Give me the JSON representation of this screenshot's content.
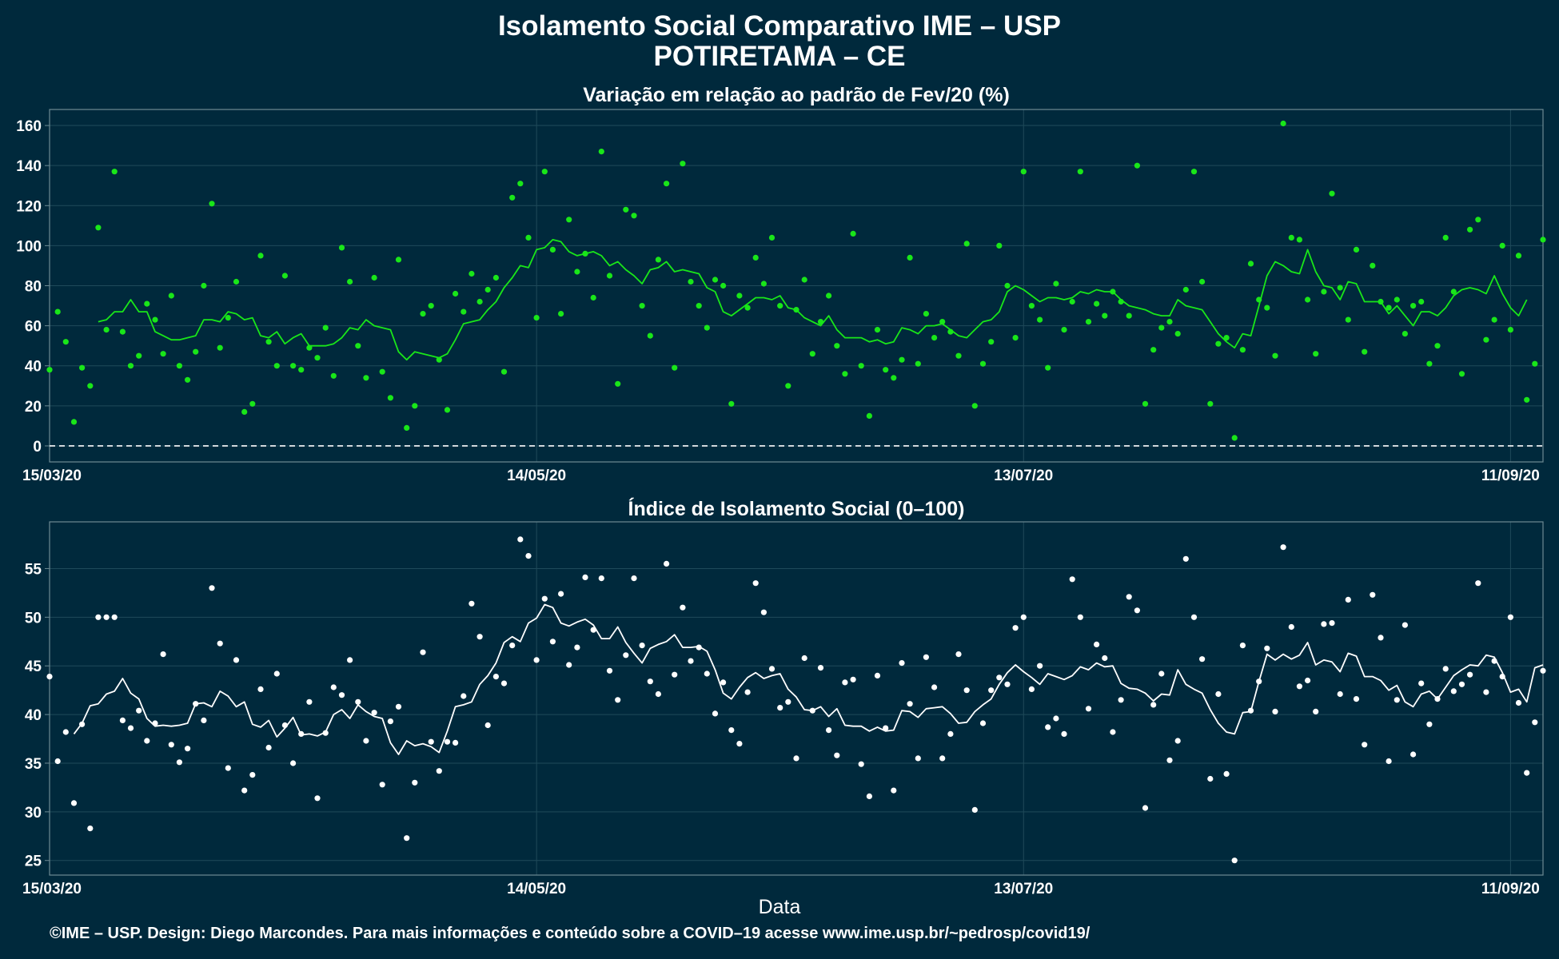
{
  "header": {
    "title": "Isolamento Social Comparativo IME – USP",
    "subtitle": "POTIRETAMA – CE"
  },
  "footer": {
    "credit": "©IME – USP. Design: Diego Marcondes. Para mais informações e conteúdo sobre a COVID–19 acesse www.ime.usp.br/~pedrosp/covid19/"
  },
  "colors": {
    "background": "#00293c",
    "top_series": "#19e619",
    "bottom_series": "#ffffff",
    "grid": "#1f4a5a",
    "panel_border": "#6d8a93"
  },
  "chart_data": [
    {
      "type": "scatter",
      "title": "Variação em relação ao padrão de Fev/20 (%)",
      "xlabel": "",
      "ylabel": "",
      "x_start": "15/03/20",
      "x_ticks": [
        "15/03/20",
        "14/05/20",
        "13/07/20",
        "11/09/20"
      ],
      "x_tick_days": [
        0,
        60,
        120,
        180
      ],
      "y_ticks": [
        0,
        20,
        40,
        60,
        80,
        100,
        120,
        140,
        160
      ],
      "ylim": [
        -8,
        168
      ],
      "xlim_days": [
        0,
        184
      ],
      "grid": true,
      "reference_line": 0,
      "series": [
        {
          "style": "points",
          "values": [
            38,
            67,
            52,
            12,
            39,
            30,
            109,
            58,
            137,
            57,
            40,
            45,
            71,
            63,
            46,
            75,
            40,
            33,
            47,
            80,
            121,
            49,
            64,
            82,
            17,
            21,
            95,
            52,
            40,
            85,
            40,
            38,
            49,
            44,
            59,
            35,
            99,
            82,
            50,
            34,
            84,
            37,
            24,
            93,
            9,
            20,
            66,
            70,
            43,
            18,
            76,
            67,
            86,
            72,
            78,
            84,
            37,
            124,
            131,
            104,
            64,
            137,
            98,
            66,
            113,
            87,
            96,
            74,
            147,
            85,
            31,
            118,
            115,
            70,
            55,
            93,
            131,
            39,
            141,
            82,
            70,
            59,
            83,
            80,
            21,
            75,
            69,
            94,
            81,
            104,
            70,
            30,
            68,
            83,
            46,
            62,
            75,
            50,
            36,
            106,
            40,
            15,
            58,
            38,
            34,
            43,
            94,
            41,
            66,
            54,
            62,
            57,
            45,
            101,
            20,
            41,
            52,
            100,
            80,
            54,
            137,
            70,
            63,
            39,
            81,
            58,
            72,
            137,
            62,
            71,
            65,
            77,
            72,
            65,
            140,
            21,
            48,
            59,
            62,
            56,
            78,
            137,
            82,
            21,
            51,
            54,
            4,
            48,
            91,
            73,
            69,
            45,
            161,
            104,
            103,
            73,
            46,
            77,
            126,
            79,
            63,
            98,
            47,
            90,
            72,
            69,
            73,
            56,
            70,
            72,
            41,
            50,
            104,
            77,
            36,
            108,
            113,
            53,
            63,
            100,
            58,
            95,
            23,
            41,
            103
          ]
        },
        {
          "style": "moving-average",
          "values": [
            null,
            null,
            null,
            null,
            null,
            null,
            62,
            63,
            67,
            67,
            73,
            67,
            67,
            57,
            55,
            53,
            53,
            54,
            55,
            63,
            63,
            62,
            67,
            66,
            63,
            64,
            55,
            54,
            57,
            51,
            54,
            56,
            50,
            50,
            50,
            51,
            54,
            59,
            58,
            63,
            60,
            59,
            58,
            47,
            43,
            47,
            46,
            45,
            44,
            46,
            53,
            61,
            62,
            63,
            68,
            72,
            79,
            84,
            90,
            89,
            98,
            99,
            103,
            102,
            97,
            95,
            96,
            97,
            95,
            90,
            92,
            88,
            85,
            81,
            88,
            89,
            92,
            87,
            88,
            87,
            86,
            79,
            77,
            67,
            65,
            68,
            71,
            74,
            74,
            73,
            75,
            69,
            68,
            64,
            62,
            60,
            65,
            58,
            54,
            54,
            54,
            52,
            53,
            51,
            52,
            59,
            58,
            56,
            60,
            60,
            61,
            58,
            55,
            54,
            58,
            62,
            63,
            67,
            77,
            80,
            78,
            75,
            72,
            74,
            74,
            73,
            74,
            77,
            76,
            78,
            77,
            77,
            73,
            70,
            69,
            68,
            66,
            65,
            65,
            73,
            70,
            69,
            68,
            62,
            56,
            52,
            49,
            56,
            55,
            70,
            85,
            92,
            90,
            87,
            86,
            98,
            87,
            80,
            79,
            73,
            82,
            81,
            72,
            72,
            72,
            66,
            70,
            65,
            60,
            67,
            67,
            65,
            69,
            75,
            78,
            79,
            78,
            76,
            85,
            76,
            69,
            65,
            73,
            null,
            null
          ]
        }
      ]
    },
    {
      "type": "scatter",
      "title": "Índice de Isolamento Social (0–100)",
      "xlabel": "Data",
      "ylabel": "",
      "x_start": "15/03/20",
      "x_ticks": [
        "15/03/20",
        "14/05/20",
        "13/07/20",
        "11/09/20"
      ],
      "x_tick_days": [
        0,
        60,
        120,
        180
      ],
      "y_ticks": [
        25,
        30,
        35,
        40,
        45,
        50,
        55
      ],
      "ylim": [
        23.5,
        59.8
      ],
      "xlim_days": [
        0,
        184
      ],
      "grid": true,
      "series": [
        {
          "style": "points",
          "values": [
            43.9,
            35.2,
            38.2,
            30.9,
            39.0,
            28.3,
            50.0,
            50.0,
            50.0,
            39.4,
            38.6,
            40.4,
            37.3,
            39.1,
            46.2,
            36.9,
            35.1,
            36.5,
            41.1,
            39.4,
            53.0,
            47.3,
            34.5,
            45.6,
            32.2,
            33.8,
            42.6,
            36.6,
            44.2,
            38.9,
            35.0,
            38.0,
            41.3,
            31.4,
            38.1,
            42.8,
            42.0,
            45.6,
            41.3,
            37.3,
            40.2,
            32.8,
            39.3,
            40.8,
            27.3,
            33.0,
            46.4,
            37.2,
            34.2,
            37.2,
            37.1,
            41.9,
            51.4,
            48.0,
            38.9,
            43.9,
            43.2,
            47.1,
            58.0,
            56.3,
            45.6,
            51.9,
            47.5,
            52.4,
            45.1,
            46.9,
            54.1,
            48.7,
            54.0,
            44.5,
            41.5,
            46.1,
            54.0,
            47.1,
            43.4,
            42.1,
            55.5,
            44.1,
            51.0,
            45.5,
            46.9,
            44.2,
            40.1,
            43.3,
            38.4,
            37.0,
            42.3,
            53.5,
            50.5,
            44.7,
            40.7,
            41.3,
            35.5,
            45.8,
            40.4,
            44.8,
            38.4,
            35.8,
            43.3,
            43.6,
            34.9,
            31.6,
            44.0,
            38.6,
            32.2,
            45.3,
            41.1,
            35.5,
            45.9,
            42.8,
            35.5,
            38.0,
            46.2,
            42.5,
            30.2,
            39.1,
            42.5,
            43.8,
            43.1,
            48.9,
            50.0,
            42.6,
            45.0,
            38.7,
            39.6,
            38.0,
            53.9,
            50.0,
            40.6,
            47.2,
            45.8,
            38.2,
            41.5,
            52.1,
            50.7,
            30.4,
            41.0,
            44.2,
            35.3,
            37.3,
            56.0,
            50.0,
            45.7,
            33.4,
            42.1,
            33.9,
            25.0,
            47.1,
            40.4,
            43.4,
            46.8,
            40.3,
            57.2,
            49.0,
            42.9,
            43.5,
            40.3,
            49.3,
            49.4,
            42.1,
            51.8,
            41.6,
            36.9,
            52.3,
            47.9,
            35.2,
            41.5,
            49.2,
            35.9,
            43.2,
            39.0,
            41.6,
            44.7,
            42.4,
            43.1,
            44.1,
            53.5,
            42.3,
            45.5,
            43.9,
            50.0,
            41.2,
            34.0,
            39.2,
            44.5
          ]
        },
        {
          "style": "moving-average",
          "values": [
            null,
            null,
            null,
            38.0,
            39.1,
            40.9,
            41.1,
            42.1,
            42.4,
            43.7,
            42.2,
            41.6,
            39.6,
            38.8,
            38.9,
            38.8,
            38.9,
            39.1,
            41.1,
            41.2,
            40.8,
            42.4,
            41.9,
            40.8,
            41.3,
            39.0,
            38.7,
            39.4,
            37.7,
            38.6,
            39.7,
            37.9,
            38.0,
            37.8,
            38.2,
            40.0,
            40.5,
            39.6,
            41.0,
            40.3,
            39.8,
            39.6,
            37.1,
            35.9,
            37.3,
            36.8,
            37.0,
            36.7,
            36.1,
            38.3,
            40.8,
            41.0,
            41.3,
            43.1,
            44.0,
            45.3,
            47.4,
            48.0,
            47.5,
            49.4,
            49.9,
            51.3,
            51.0,
            49.4,
            49.1,
            49.5,
            49.8,
            49.2,
            47.8,
            47.8,
            49.0,
            47.4,
            46.3,
            45.3,
            46.8,
            47.2,
            47.5,
            48.2,
            46.9,
            46.9,
            47.0,
            46.5,
            44.6,
            42.2,
            41.6,
            42.8,
            43.8,
            44.3,
            43.7,
            44.0,
            44.2,
            42.6,
            41.8,
            40.5,
            40.4,
            40.8,
            39.8,
            40.6,
            38.9,
            38.8,
            38.8,
            38.3,
            38.7,
            38.3,
            38.4,
            40.4,
            40.3,
            39.7,
            40.6,
            40.7,
            40.8,
            40.1,
            39.1,
            39.2,
            40.3,
            41.0,
            41.6,
            43.1,
            44.3,
            45.1,
            44.4,
            43.8,
            43.1,
            44.2,
            43.9,
            43.6,
            44.0,
            44.9,
            44.6,
            45.3,
            44.9,
            45.0,
            43.2,
            42.7,
            42.6,
            42.2,
            41.4,
            42.1,
            42.0,
            44.6,
            43.1,
            42.6,
            42.2,
            40.5,
            39.1,
            38.2,
            38.0,
            40.2,
            40.3,
            43.4,
            46.2,
            45.6,
            46.2,
            45.7,
            46.1,
            47.4,
            45.1,
            45.6,
            45.4,
            44.4,
            46.3,
            46.0,
            43.9,
            43.9,
            43.5,
            42.5,
            43.0,
            41.3,
            40.8,
            42.1,
            42.4,
            41.6,
            42.8,
            44.0,
            44.6,
            45.1,
            45.0,
            46.1,
            45.9,
            44.3,
            42.3,
            42.6,
            41.3,
            44.8,
            45.1
          ]
        }
      ]
    }
  ]
}
